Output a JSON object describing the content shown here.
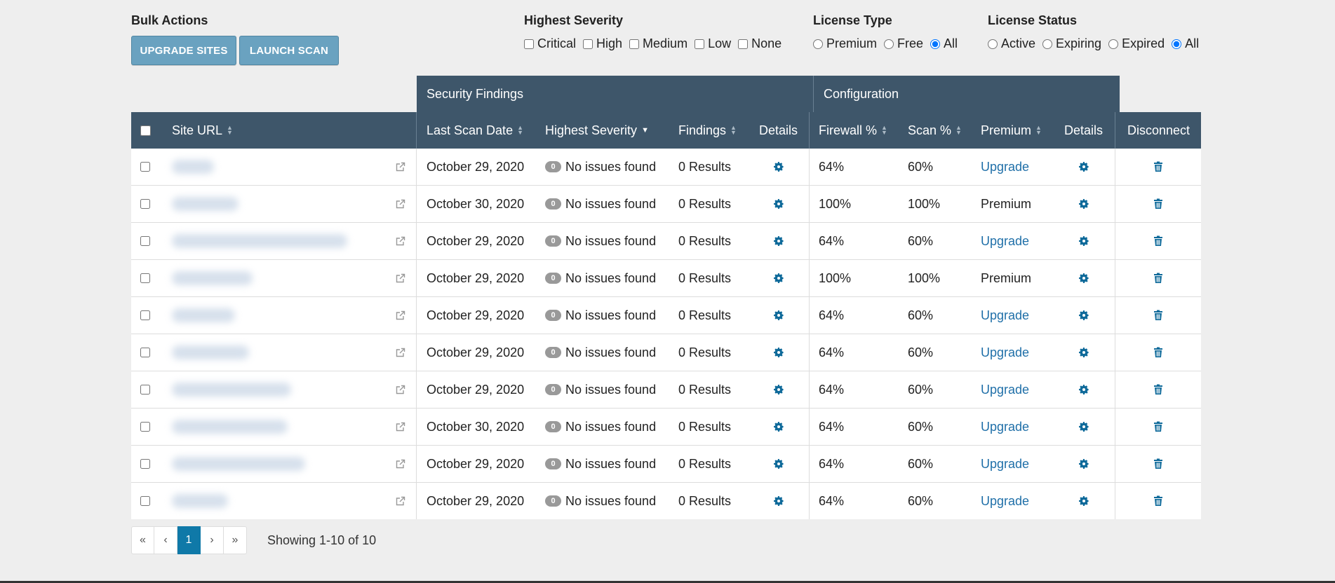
{
  "bulk_actions": {
    "title": "Bulk Actions",
    "upgrade_label": "UPGRADE SITES",
    "scan_label": "LAUNCH SCAN"
  },
  "severity_filter": {
    "title": "Highest Severity",
    "options": [
      {
        "label": "Critical",
        "checked": false
      },
      {
        "label": "High",
        "checked": false
      },
      {
        "label": "Medium",
        "checked": false
      },
      {
        "label": "Low",
        "checked": false
      },
      {
        "label": "None",
        "checked": false
      }
    ]
  },
  "license_type": {
    "title": "License Type",
    "options": [
      {
        "label": "Premium",
        "checked": false
      },
      {
        "label": "Free",
        "checked": false
      },
      {
        "label": "All",
        "checked": true
      }
    ]
  },
  "license_status": {
    "title": "License Status",
    "options": [
      {
        "label": "Active",
        "checked": false
      },
      {
        "label": "Expiring",
        "checked": false
      },
      {
        "label": "Expired",
        "checked": false
      },
      {
        "label": "All",
        "checked": true
      }
    ]
  },
  "table": {
    "groups": {
      "security": "Security Findings",
      "configuration": "Configuration"
    },
    "headers": {
      "site_url": "Site URL",
      "last_scan": "Last Scan Date",
      "severity": "Highest Severity",
      "findings": "Findings",
      "details": "Details",
      "firewall": "Firewall %",
      "scan": "Scan %",
      "premium": "Premium",
      "config_details": "Details",
      "disconnect": "Disconnect"
    },
    "rows": [
      {
        "date": "October 29, 2020",
        "badge": "0",
        "severity": "No issues found",
        "findings": "0 Results",
        "firewall": "64%",
        "scan": "60%",
        "premium": "Upgrade",
        "premium_link": true
      },
      {
        "date": "October 30, 2020",
        "badge": "0",
        "severity": "No issues found",
        "findings": "0 Results",
        "firewall": "100%",
        "scan": "100%",
        "premium": "Premium",
        "premium_link": false
      },
      {
        "date": "October 29, 2020",
        "badge": "0",
        "severity": "No issues found",
        "findings": "0 Results",
        "firewall": "64%",
        "scan": "60%",
        "premium": "Upgrade",
        "premium_link": true
      },
      {
        "date": "October 29, 2020",
        "badge": "0",
        "severity": "No issues found",
        "findings": "0 Results",
        "firewall": "100%",
        "scan": "100%",
        "premium": "Premium",
        "premium_link": false
      },
      {
        "date": "October 29, 2020",
        "badge": "0",
        "severity": "No issues found",
        "findings": "0 Results",
        "firewall": "64%",
        "scan": "60%",
        "premium": "Upgrade",
        "premium_link": true
      },
      {
        "date": "October 29, 2020",
        "badge": "0",
        "severity": "No issues found",
        "findings": "0 Results",
        "firewall": "64%",
        "scan": "60%",
        "premium": "Upgrade",
        "premium_link": true
      },
      {
        "date": "October 29, 2020",
        "badge": "0",
        "severity": "No issues found",
        "findings": "0 Results",
        "firewall": "64%",
        "scan": "60%",
        "premium": "Upgrade",
        "premium_link": true
      },
      {
        "date": "October 30, 2020",
        "badge": "0",
        "severity": "No issues found",
        "findings": "0 Results",
        "firewall": "64%",
        "scan": "60%",
        "premium": "Upgrade",
        "premium_link": true
      },
      {
        "date": "October 29, 2020",
        "badge": "0",
        "severity": "No issues found",
        "findings": "0 Results",
        "firewall": "64%",
        "scan": "60%",
        "premium": "Upgrade",
        "premium_link": true
      },
      {
        "date": "October 29, 2020",
        "badge": "0",
        "severity": "No issues found",
        "findings": "0 Results",
        "firewall": "64%",
        "scan": "60%",
        "premium": "Upgrade",
        "premium_link": true
      }
    ]
  },
  "pagination": {
    "first": "«",
    "prev": "‹",
    "current": "1",
    "next": "›",
    "last": "»",
    "showing": "Showing 1-10 of 10"
  },
  "colors": {
    "header_bg": "#3e566a",
    "accent": "#0f79a8",
    "link": "#1f6fa8",
    "button": "#6aa2c0"
  },
  "icons": {
    "external": "external-link-icon",
    "details": "gear-icon",
    "disconnect": "trash-icon"
  }
}
